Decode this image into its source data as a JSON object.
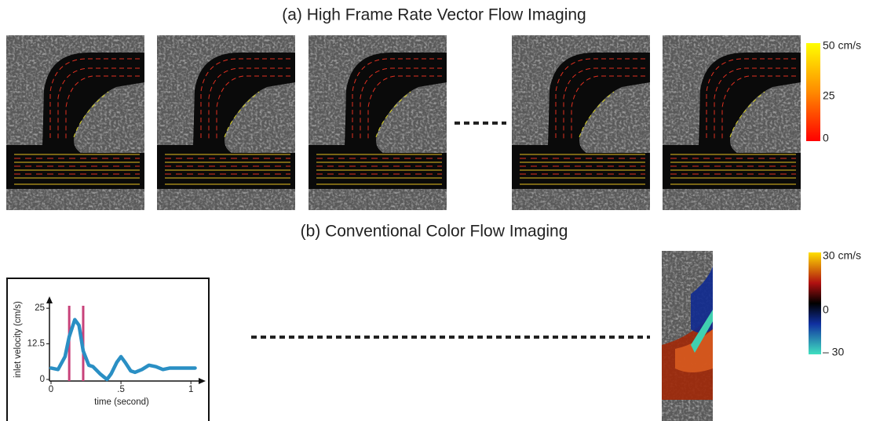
{
  "panel_a": {
    "title": "(a) High Frame Rate Vector Flow Imaging",
    "colorbar": {
      "labels": [
        "50 cm/s",
        "25",
        "0"
      ]
    }
  },
  "panel_b": {
    "title": "(b) Conventional Color Flow Imaging",
    "colorbar": {
      "labels": [
        "30 cm/s",
        "0",
        "– 30"
      ]
    }
  },
  "chart_data": {
    "type": "line",
    "x_label": "time (second)",
    "y_label": "inlet velocity (cm/s)",
    "x": [
      0,
      0.05,
      0.1,
      0.13,
      0.17,
      0.2,
      0.23,
      0.27,
      0.3,
      0.35,
      0.4,
      0.43,
      0.47,
      0.5,
      0.53,
      0.57,
      0.6,
      0.65,
      0.7,
      0.75,
      0.8,
      0.85,
      0.9,
      1.0,
      1.03
    ],
    "series": [
      {
        "color": "#2a8fc4",
        "values": [
          4,
          3.5,
          8,
          15,
          21,
          19,
          10,
          5,
          4.5,
          2,
          0,
          2,
          6,
          8,
          6,
          3,
          2.5,
          3.5,
          5,
          4.5,
          3.5,
          4,
          4,
          4,
          4
        ]
      }
    ],
    "xlim": [
      0,
      1.1
    ],
    "ylim": [
      0,
      30
    ],
    "xticks": [
      0,
      {
        "value": 0.5,
        "label": ".5"
      },
      1
    ],
    "yticks": [
      0,
      12.5,
      25
    ],
    "vlines": [
      0.13,
      0.23
    ],
    "vline_color": "#c8427a"
  }
}
